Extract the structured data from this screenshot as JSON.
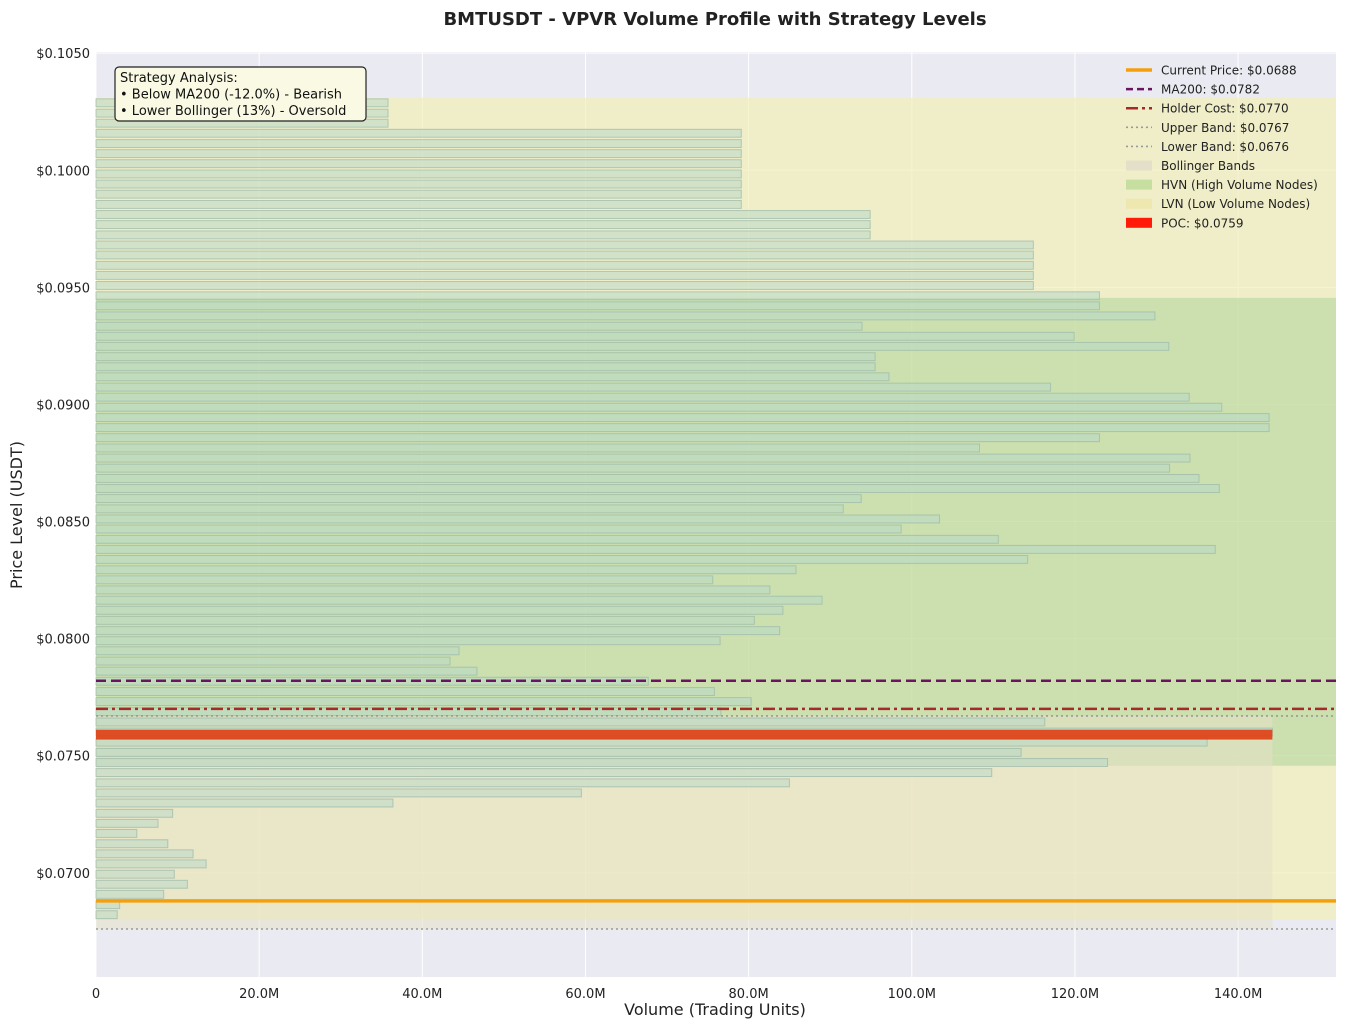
{
  "chart_data": {
    "type": "bar",
    "orientation": "horizontal",
    "title": "BMTUSDT - VPVR Volume Profile with Strategy Levels",
    "xlabel": "Volume (Trading Units)",
    "ylabel": "Price Level (USDT)",
    "xlim": [
      0,
      152
    ],
    "ylim": [
      0.06555,
      0.10505
    ],
    "x_ticks": [
      0,
      20,
      40,
      60,
      80,
      100,
      120,
      140
    ],
    "x_tick_labels": [
      "0",
      "20.0M",
      "40.0M",
      "60.0M",
      "80.0M",
      "100.0M",
      "120.0M",
      "140.0M"
    ],
    "y_ticks": [
      0.07,
      0.075,
      0.08,
      0.085,
      0.09,
      0.095,
      0.1,
      0.105
    ],
    "y_tick_labels": [
      "$0.0700",
      "$0.0750",
      "$0.0800",
      "$0.0850",
      "$0.0900",
      "$0.0950",
      "$0.1000",
      "$0.1050"
    ],
    "grid": true,
    "legend_placement": "top-right",
    "bar_price_step": 0.0004333,
    "bars": [
      {
        "price": 0.06821,
        "volume": 2.6
      },
      {
        "price": 0.06864,
        "volume": 2.9
      },
      {
        "price": 0.06908,
        "volume": 8.3
      },
      {
        "price": 0.06951,
        "volume": 11.2
      },
      {
        "price": 0.06994,
        "volume": 9.6
      },
      {
        "price": 0.07038,
        "volume": 13.5
      },
      {
        "price": 0.07081,
        "volume": 11.9
      },
      {
        "price": 0.07124,
        "volume": 8.8
      },
      {
        "price": 0.07168,
        "volume": 5.0
      },
      {
        "price": 0.07211,
        "volume": 7.6
      },
      {
        "price": 0.07254,
        "volume": 9.4
      },
      {
        "price": 0.07298,
        "volume": 36.4
      },
      {
        "price": 0.07341,
        "volume": 59.5
      },
      {
        "price": 0.07384,
        "volume": 85.0
      },
      {
        "price": 0.07428,
        "volume": 109.8
      },
      {
        "price": 0.07471,
        "volume": 124.0
      },
      {
        "price": 0.07514,
        "volume": 113.4
      },
      {
        "price": 0.07558,
        "volume": 136.2
      },
      {
        "price": 0.07601,
        "volume": 144.2
      },
      {
        "price": 0.07644,
        "volume": 116.3
      },
      {
        "price": 0.07688,
        "volume": 76.6
      },
      {
        "price": 0.07731,
        "volume": 80.3
      },
      {
        "price": 0.07774,
        "volume": 75.8
      },
      {
        "price": 0.07818,
        "volume": 67.7
      },
      {
        "price": 0.07861,
        "volume": 46.7
      },
      {
        "price": 0.07904,
        "volume": 43.4
      },
      {
        "price": 0.07948,
        "volume": 44.5
      },
      {
        "price": 0.07991,
        "volume": 76.5
      },
      {
        "price": 0.08034,
        "volume": 83.8
      },
      {
        "price": 0.08078,
        "volume": 80.7
      },
      {
        "price": 0.08121,
        "volume": 84.2
      },
      {
        "price": 0.08164,
        "volume": 89.0
      },
      {
        "price": 0.08208,
        "volume": 82.6
      },
      {
        "price": 0.08251,
        "volume": 75.6
      },
      {
        "price": 0.08294,
        "volume": 85.8
      },
      {
        "price": 0.08338,
        "volume": 114.2
      },
      {
        "price": 0.08381,
        "volume": 137.2
      },
      {
        "price": 0.08424,
        "volume": 110.6
      },
      {
        "price": 0.08468,
        "volume": 98.7
      },
      {
        "price": 0.08511,
        "volume": 103.4
      },
      {
        "price": 0.08554,
        "volume": 91.6
      },
      {
        "price": 0.08598,
        "volume": 93.8
      },
      {
        "price": 0.08641,
        "volume": 137.7
      },
      {
        "price": 0.08684,
        "volume": 135.2
      },
      {
        "price": 0.08728,
        "volume": 131.6
      },
      {
        "price": 0.08771,
        "volume": 134.1
      },
      {
        "price": 0.08814,
        "volume": 108.3
      },
      {
        "price": 0.08858,
        "volume": 123.0
      },
      {
        "price": 0.08901,
        "volume": 143.8
      },
      {
        "price": 0.08944,
        "volume": 143.8
      },
      {
        "price": 0.08988,
        "volume": 138.0
      },
      {
        "price": 0.09031,
        "volume": 134.0
      },
      {
        "price": 0.09074,
        "volume": 117.0
      },
      {
        "price": 0.09118,
        "volume": 97.2
      },
      {
        "price": 0.09161,
        "volume": 95.5
      },
      {
        "price": 0.09204,
        "volume": 95.5
      },
      {
        "price": 0.09248,
        "volume": 131.5
      },
      {
        "price": 0.09291,
        "volume": 119.9
      },
      {
        "price": 0.09334,
        "volume": 93.9
      },
      {
        "price": 0.09378,
        "volume": 129.8
      },
      {
        "price": 0.09421,
        "volume": 123.0
      },
      {
        "price": 0.09464,
        "volume": 123.0
      },
      {
        "price": 0.09508,
        "volume": 114.9
      },
      {
        "price": 0.09551,
        "volume": 114.9
      },
      {
        "price": 0.09594,
        "volume": 114.9
      },
      {
        "price": 0.09638,
        "volume": 114.9
      },
      {
        "price": 0.09681,
        "volume": 114.9
      },
      {
        "price": 0.09724,
        "volume": 94.9
      },
      {
        "price": 0.09768,
        "volume": 94.9
      },
      {
        "price": 0.09811,
        "volume": 94.9
      },
      {
        "price": 0.09854,
        "volume": 79.1
      },
      {
        "price": 0.09898,
        "volume": 79.1
      },
      {
        "price": 0.09941,
        "volume": 79.1
      },
      {
        "price": 0.09984,
        "volume": 79.1
      },
      {
        "price": 0.10028,
        "volume": 79.1
      },
      {
        "price": 0.10071,
        "volume": 79.1
      },
      {
        "price": 0.10114,
        "volume": 79.1
      },
      {
        "price": 0.10158,
        "volume": 79.1
      },
      {
        "price": 0.10201,
        "volume": 35.8
      },
      {
        "price": 0.10244,
        "volume": 35.8
      },
      {
        "price": 0.10288,
        "volume": 35.8
      }
    ],
    "poc": {
      "price": 0.0759,
      "volume": 144.2
    },
    "lines": [
      {
        "key": "current_price",
        "label": "Current Price: $0.0688",
        "value": 0.0688,
        "color": "#f5a00b",
        "style": "solid"
      },
      {
        "key": "ma200",
        "label": "MA200: $0.0782",
        "value": 0.0782,
        "color": "#6b1460",
        "style": "dashed"
      },
      {
        "key": "holder_cost",
        "label": "Holder Cost: $0.0770",
        "value": 0.077,
        "color": "#a52a2a",
        "style": "dashdot"
      },
      {
        "key": "upper_band",
        "label": "Upper Band: $0.0767",
        "value": 0.0767,
        "color": "#999999",
        "style": "dotted"
      },
      {
        "key": "lower_band",
        "label": "Lower Band: $0.0676",
        "value": 0.0676,
        "color": "#999999",
        "style": "dotted"
      }
    ],
    "bands": {
      "bollinger": {
        "label": "Bollinger Bands",
        "x_end": 144.2,
        "price_from": 0.0676,
        "price_to": 0.0767,
        "color": "#e6e0c6"
      },
      "hvn": {
        "label": "HVN (High Volume Nodes)",
        "price_from": 0.07457,
        "price_to": 0.09455,
        "color": "#c4dc9e"
      },
      "lvn": [
        {
          "label": "LVN (Low Volume Nodes)",
          "price_from": 0.06802,
          "price_to": 0.07457,
          "color": "#f2efb8"
        },
        {
          "label": "LVN (Low Volume Nodes)",
          "price_from": 0.09455,
          "price_to": 0.1031,
          "color": "#f2efb8"
        }
      ]
    },
    "legend": [
      {
        "kind": "line",
        "ref": "current_price",
        "label": "Current Price: $0.0688"
      },
      {
        "kind": "line",
        "ref": "ma200",
        "label": "MA200: $0.0782"
      },
      {
        "kind": "line",
        "ref": "holder_cost",
        "label": "Holder Cost: $0.0770"
      },
      {
        "kind": "line",
        "ref": "upper_band",
        "label": "Upper Band: $0.0767"
      },
      {
        "kind": "line",
        "ref": "lower_band",
        "label": "Lower Band: $0.0676"
      },
      {
        "kind": "patch",
        "color": "#e3dfc8",
        "label": "Bollinger Bands"
      },
      {
        "kind": "patch",
        "color": "#c6dea0",
        "label": "HVN (High Volume Nodes)"
      },
      {
        "kind": "patch",
        "color": "#efe7b0",
        "label": "LVN (Low Volume Nodes)"
      },
      {
        "kind": "patch",
        "color": "#ff1a0a",
        "label": "POC: $0.0759"
      }
    ],
    "annotation": {
      "lines": [
        "Strategy Analysis:",
        "• Below MA200 (-12.0%) - Bearish",
        "• Lower Bollinger (13%) - Oversold"
      ]
    },
    "colors": {
      "plot_background": "#eaeaf2",
      "bar_fill": "#b8d8c8",
      "bar_edge": "#9ab8a8",
      "poc_fill": "#e04016"
    }
  }
}
